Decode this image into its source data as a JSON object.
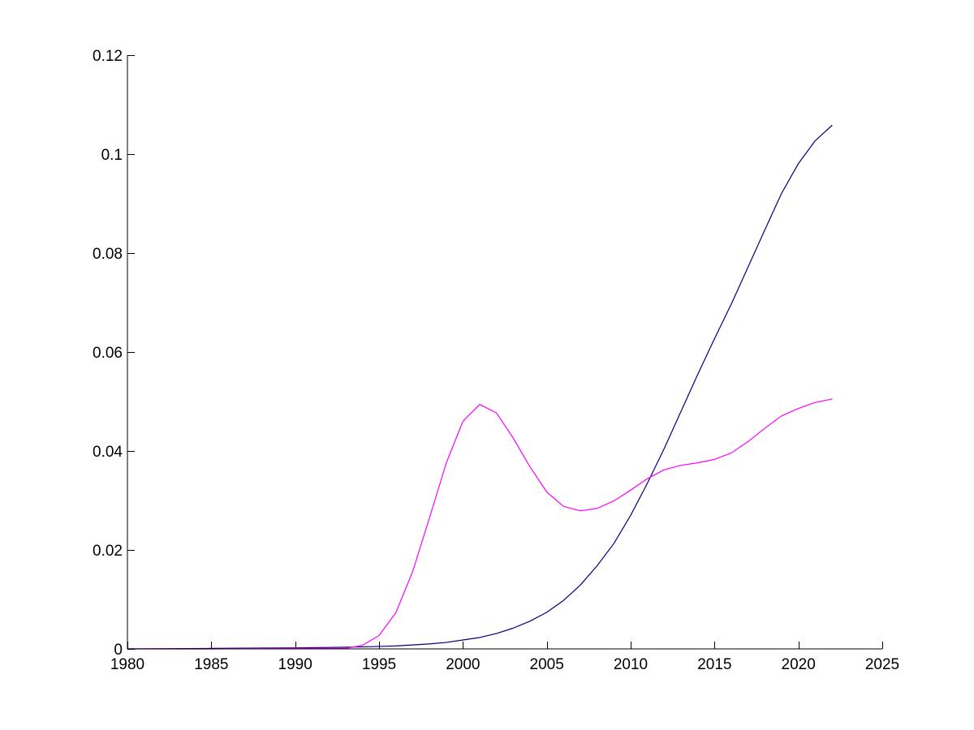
{
  "chart_data": {
    "type": "line",
    "title": "",
    "xlabel": "",
    "ylabel": "",
    "xlim": [
      1980,
      2025
    ],
    "ylim": [
      0,
      0.12
    ],
    "xticks": [
      1980,
      1985,
      1990,
      1995,
      2000,
      2005,
      2010,
      2015,
      2020,
      2025
    ],
    "yticks": [
      0,
      0.02,
      0.04,
      0.06,
      0.08,
      0.1,
      0.12
    ],
    "xtick_labels": [
      "1980",
      "1985",
      "1990",
      "1995",
      "2000",
      "2005",
      "2010",
      "2015",
      "2020",
      "2025"
    ],
    "ytick_labels": [
      "0",
      "0.02",
      "0.04",
      "0.06",
      "0.08",
      "0.1",
      "0.12"
    ],
    "grid": false,
    "box": "left-bottom axes only",
    "series": [
      {
        "color": "#00007f",
        "x": [
          1980,
          1985,
          1990,
          1992,
          1994,
          1995,
          1996,
          1997,
          1998,
          1999,
          2000,
          2001,
          2002,
          2003,
          2004,
          2005,
          2006,
          2007,
          2008,
          2009,
          2010,
          2011,
          2012,
          2013,
          2014,
          2015,
          2016,
          2017,
          2018,
          2019,
          2020,
          2021,
          2022
        ],
        "y": [
          0,
          0.0001,
          0.0002,
          0.0003,
          0.0004,
          0.0005,
          0.0006,
          0.0008,
          0.001,
          0.0013,
          0.0018,
          0.0023,
          0.0031,
          0.0042,
          0.0056,
          0.0074,
          0.0098,
          0.0129,
          0.0168,
          0.0213,
          0.027,
          0.0335,
          0.0405,
          0.048,
          0.0555,
          0.0627,
          0.0697,
          0.0772,
          0.0847,
          0.0921,
          0.0981,
          0.1027,
          0.1058
        ]
      },
      {
        "color": "#ff00ff",
        "x": [
          1980,
          1985,
          1990,
          1993,
          1994,
          1995,
          1996,
          1997,
          1998,
          1999,
          2000,
          2001,
          2002,
          2003,
          2004,
          2005,
          2006,
          2007,
          2008,
          2009,
          2010,
          2011,
          2012,
          2013,
          2014,
          2015,
          2016,
          2017,
          2018,
          2019,
          2020,
          2021,
          2022
        ],
        "y": [
          0,
          0,
          0.0001,
          0.0001,
          0.0007,
          0.0027,
          0.0073,
          0.0156,
          0.0264,
          0.0375,
          0.046,
          0.0494,
          0.0477,
          0.0426,
          0.0368,
          0.0317,
          0.0288,
          0.0279,
          0.0284,
          0.0299,
          0.0321,
          0.0344,
          0.0362,
          0.0371,
          0.0376,
          0.0383,
          0.0396,
          0.0419,
          0.0446,
          0.0471,
          0.0486,
          0.0498,
          0.0505
        ]
      }
    ]
  }
}
